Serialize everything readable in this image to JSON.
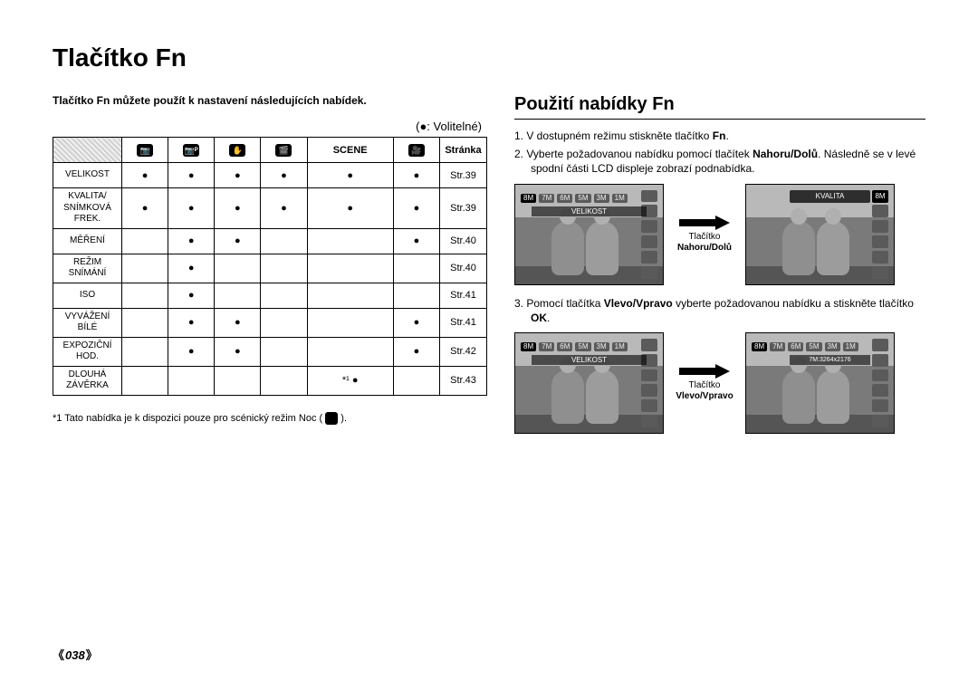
{
  "page_title": "Tlačítko Fn",
  "page_number": "038",
  "left": {
    "intro": "Tlačítko Fn můžete použít k nastavení následujících nabídek.",
    "legend_prefix": "(",
    "legend_bullet": "●",
    "legend_text": ": Volitelné)",
    "header_scene": "SCENE",
    "header_page": "Stránka",
    "mode_icons": [
      "📷",
      "📷ᴾ",
      "✋",
      "🎬",
      "SCENE",
      "🎥"
    ],
    "rows": [
      {
        "label": "VELIKOST",
        "dots": [
          "●",
          "●",
          "●",
          "●",
          "●",
          "●"
        ],
        "page": "Str.39"
      },
      {
        "label": "KVALITA/\nSNÍMKOVÁ\nFREK.",
        "dots": [
          "●",
          "●",
          "●",
          "●",
          "●",
          "●"
        ],
        "page": "Str.39"
      },
      {
        "label": "MĚŘENÍ",
        "dots": [
          "",
          "●",
          "●",
          "",
          "",
          "●"
        ],
        "page": "Str.40"
      },
      {
        "label": "REŽIM\nSNÍMÁNÍ",
        "dots": [
          "",
          "●",
          "",
          "",
          "",
          ""
        ],
        "page": "Str.40"
      },
      {
        "label": "ISO",
        "dots": [
          "",
          "●",
          "",
          "",
          "",
          ""
        ],
        "page": "Str.41"
      },
      {
        "label": "VYVÁŽENÍ\nBÍLÉ",
        "dots": [
          "",
          "●",
          "●",
          "",
          "",
          "●"
        ],
        "page": "Str.41"
      },
      {
        "label": "EXPOZIČNÍ\nHOD.",
        "dots": [
          "",
          "●",
          "●",
          "",
          "",
          "●"
        ],
        "page": "Str.42"
      },
      {
        "label": "DLOUHÁ\nZÁVĚRKA",
        "dots": [
          "",
          "",
          "",
          "",
          "*¹ ●",
          ""
        ],
        "page": "Str.43"
      }
    ],
    "footnote": "*1  Tato nabídka je k dispozici pouze pro scénický režim Noc (",
    "footnote_end": ")."
  },
  "right": {
    "section_title": "Použití nabídky Fn",
    "step1_pre": "1.  V dostupném režimu stiskněte tlačítko ",
    "step1_b": "Fn",
    "step1_post": ".",
    "step2_pre": "2.  Vyberte požadovanou nabídku pomocí tlačítek ",
    "step2_b": "Nahoru/Dolů",
    "step2_post": ". Následně se v levé spodní části LCD displeje zobrazí podnabídka.",
    "arrow1_line1": "Tlačítko",
    "arrow1_line2": "Nahoru/Dolů",
    "lcd_a_label": "VELIKOST",
    "lcd_a_chips": [
      "8M",
      "7M",
      "6M",
      "5M",
      "3M",
      "1M"
    ],
    "lcd_b_label": "KVALITA",
    "lcd_b_corner": "8M",
    "step3_pre": "3.  Pomocí tlačítka ",
    "step3_b1": "Vlevo/Vpravo",
    "step3_mid": " vyberte požadovanou nabídku a stiskněte tlačítko ",
    "step3_b2": "OK",
    "step3_post": ".",
    "arrow2_line1": "Tlačítko",
    "arrow2_line2": "Vlevo/Vpravo",
    "lcd_c_label": "VELIKOST",
    "lcd_c_chips": [
      "8M",
      "7M",
      "6M",
      "5M",
      "3M",
      "1M"
    ],
    "lcd_d_chips": [
      "8M",
      "7M",
      "6M",
      "5M",
      "3M",
      "1M"
    ],
    "lcd_d_size": "7M:3264x2176"
  }
}
